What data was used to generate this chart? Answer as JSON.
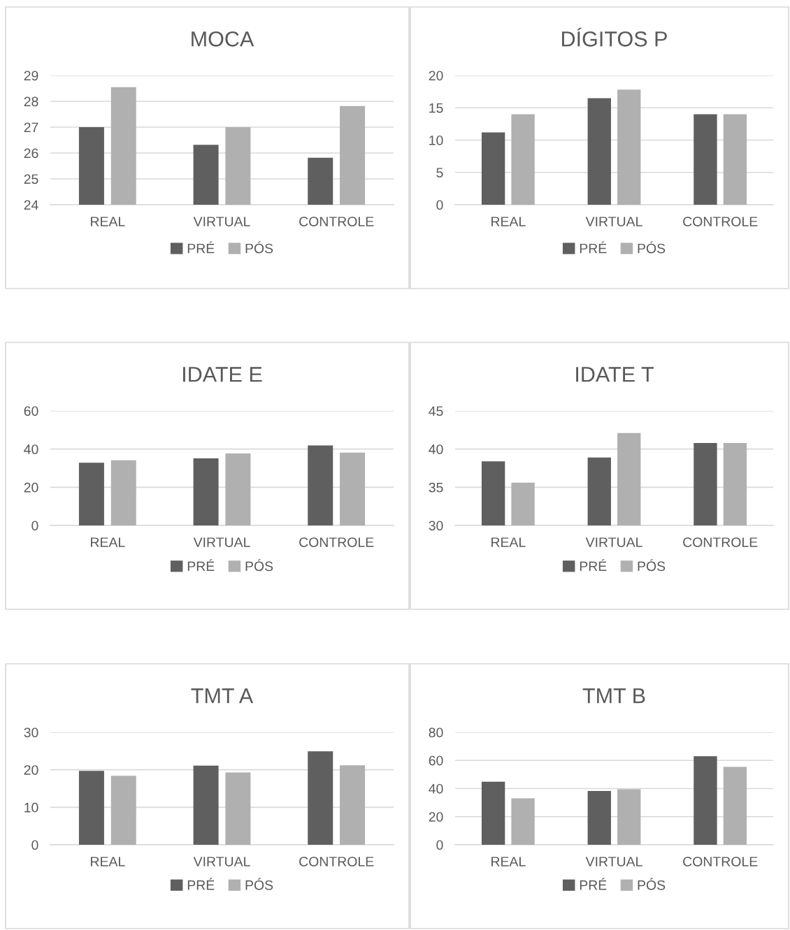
{
  "chart_data": [
    {
      "type": "bar",
      "title": "MOCA",
      "categories": [
        "REAL",
        "VIRTUAL",
        "CONTROLE"
      ],
      "series": [
        {
          "name": "PRÉ",
          "color": "#5f5f5f",
          "values": [
            27,
            26.32,
            25.82
          ]
        },
        {
          "name": "PÓS",
          "color": "#b0b0b0",
          "values": [
            28.55,
            27,
            27.82
          ]
        }
      ],
      "ylim": [
        24,
        29
      ],
      "yticks": [
        24,
        25,
        26,
        27,
        28,
        29
      ],
      "grid": "y",
      "legend": "bottom"
    },
    {
      "type": "bar",
      "title": "DÍGITOS P",
      "categories": [
        "REAL",
        "VIRTUAL",
        "CONTROLE"
      ],
      "series": [
        {
          "name": "PRÉ",
          "color": "#5f5f5f",
          "values": [
            11.2,
            16.5,
            14
          ]
        },
        {
          "name": "PÓS",
          "color": "#b0b0b0",
          "values": [
            14,
            17.8,
            14
          ]
        }
      ],
      "ylim": [
        0,
        20
      ],
      "yticks": [
        0,
        5,
        10,
        15,
        20
      ],
      "grid": "y",
      "legend": "bottom"
    },
    {
      "type": "bar",
      "title": "IDATE E",
      "categories": [
        "REAL",
        "VIRTUAL",
        "CONTROLE"
      ],
      "series": [
        {
          "name": "PRÉ",
          "color": "#5f5f5f",
          "values": [
            32.8,
            35.1,
            41.9
          ]
        },
        {
          "name": "PÓS",
          "color": "#b0b0b0",
          "values": [
            34.1,
            37.7,
            38.1
          ]
        }
      ],
      "ylim": [
        0,
        60
      ],
      "yticks": [
        0,
        20,
        40,
        60
      ],
      "grid": "y",
      "legend": "bottom"
    },
    {
      "type": "bar",
      "title": "IDATE T",
      "categories": [
        "REAL",
        "VIRTUAL",
        "CONTROLE"
      ],
      "series": [
        {
          "name": "PRÉ",
          "color": "#5f5f5f",
          "values": [
            38.4,
            38.9,
            40.8
          ]
        },
        {
          "name": "PÓS",
          "color": "#b0b0b0",
          "values": [
            35.6,
            42.1,
            40.8
          ]
        }
      ],
      "ylim": [
        30,
        45
      ],
      "yticks": [
        30,
        35,
        40,
        45
      ],
      "grid": "y",
      "legend": "bottom"
    },
    {
      "type": "bar",
      "title": "TMT A",
      "categories": [
        "REAL",
        "VIRTUAL",
        "CONTROLE"
      ],
      "series": [
        {
          "name": "PRÉ",
          "color": "#5f5f5f",
          "values": [
            19.7,
            21.1,
            24.9
          ]
        },
        {
          "name": "PÓS",
          "color": "#b0b0b0",
          "values": [
            18.4,
            19.3,
            21.2
          ]
        }
      ],
      "ylim": [
        0,
        30
      ],
      "yticks": [
        0,
        10,
        20,
        30
      ],
      "grid": "y",
      "legend": "bottom"
    },
    {
      "type": "bar",
      "title": "TMT B",
      "categories": [
        "REAL",
        "VIRTUAL",
        "CONTROLE"
      ],
      "series": [
        {
          "name": "PRÉ",
          "color": "#5f5f5f",
          "values": [
            44.8,
            38.3,
            63
          ]
        },
        {
          "name": "PÓS",
          "color": "#b0b0b0",
          "values": [
            33.1,
            39.5,
            55.4
          ]
        }
      ],
      "ylim": [
        0,
        80
      ],
      "yticks": [
        0,
        20,
        40,
        60,
        80
      ],
      "grid": "y",
      "legend": "bottom"
    }
  ]
}
